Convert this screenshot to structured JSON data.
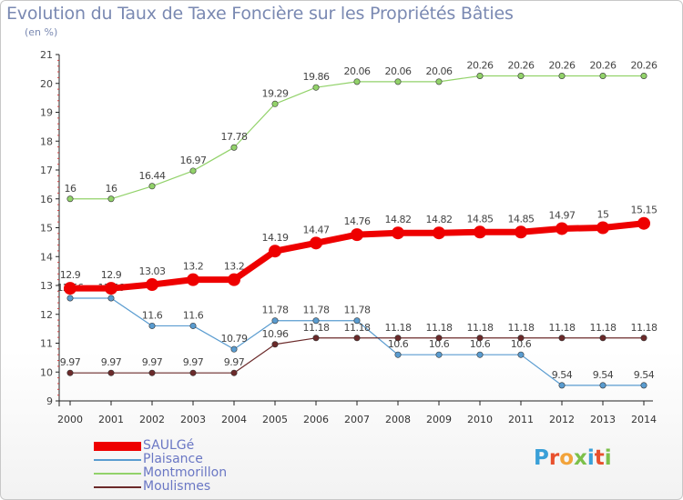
{
  "title": "Evolution du Taux de Taxe Foncière sur les Propriétés Bâties",
  "unit_label": "(en %)",
  "logo": {
    "text": "Proxiti",
    "colors": [
      "#3aa0d8",
      "#e8502d",
      "#f2a33a",
      "#7cc04a",
      "#3aa0d8",
      "#e8502d",
      "#7cc04a"
    ]
  },
  "chart_data": {
    "type": "line",
    "x": [
      "2000",
      "2001",
      "2002",
      "2003",
      "2004",
      "2005",
      "2006",
      "2007",
      "2008",
      "2009",
      "2010",
      "2011",
      "2012",
      "2013",
      "2014"
    ],
    "ylim": [
      9,
      21
    ],
    "yticks": [
      "9",
      "10",
      "11",
      "12",
      "13",
      "14",
      "15",
      "16",
      "17",
      "18",
      "19",
      "20",
      "21"
    ],
    "grid": false,
    "legend_position": "bottom-left",
    "series": [
      {
        "name": "Montmorillon",
        "color": "#92d26a",
        "values": [
          16,
          16,
          16.44,
          16.97,
          17.78,
          19.29,
          19.86,
          20.06,
          20.06,
          20.06,
          20.26,
          20.26,
          20.26,
          20.26,
          20.26
        ],
        "labels": [
          "16",
          "16",
          "16.44",
          "16.97",
          "17.78",
          "19.29",
          "19.86",
          "20.06",
          "20.06",
          "20.06",
          "20.26",
          "20.26",
          "20.26",
          "20.26",
          "20.26"
        ]
      },
      {
        "name": "Plaisance",
        "color": "#5a9cd0",
        "values": [
          12.56,
          12.56,
          11.6,
          11.6,
          10.79,
          11.78,
          11.78,
          11.78,
          10.6,
          10.6,
          10.6,
          10.6,
          9.54,
          9.54,
          9.54
        ],
        "labels": [
          "12.56",
          "12.56",
          "11.6",
          "11.6",
          "10.79",
          "11.78",
          "11.78",
          "11.78",
          "10.6",
          "10.6",
          "10.6",
          "10.6",
          "9.54",
          "9.54",
          "9.54"
        ]
      },
      {
        "name": "Moulismes",
        "color": "#6b2a2a",
        "values": [
          9.97,
          9.97,
          9.97,
          9.97,
          9.97,
          10.96,
          11.18,
          11.18,
          11.18,
          11.18,
          11.18,
          11.18,
          11.18,
          11.18,
          11.18
        ],
        "labels": [
          "9.97",
          "9.97",
          "9.97",
          "9.97",
          "9.97",
          "10.96",
          "11.18",
          "11.18",
          "11.18",
          "11.18",
          "11.18",
          "11.18",
          "11.18",
          "11.18",
          "11.18"
        ]
      },
      {
        "name": "SAULGé",
        "color": "#ee0000",
        "values": [
          12.9,
          12.9,
          13.03,
          13.2,
          13.2,
          14.19,
          14.47,
          14.76,
          14.82,
          14.82,
          14.85,
          14.85,
          14.97,
          15,
          15.15
        ],
        "labels": [
          "12.9",
          "12.9",
          "13.03",
          "13.2",
          "13.2",
          "14.19",
          "14.47",
          "14.76",
          "14.82",
          "14.82",
          "14.85",
          "14.85",
          "14.97",
          "15",
          "15.15"
        ]
      }
    ],
    "legend": [
      "SAULGé",
      "Plaisance",
      "Montmorillon",
      "Moulismes"
    ]
  }
}
